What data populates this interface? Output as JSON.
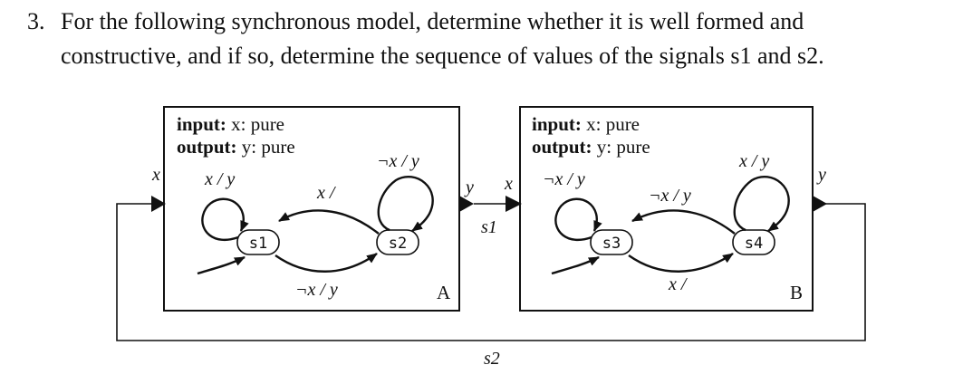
{
  "problem": {
    "number": "3.",
    "line1": "For the following synchronous model, determine whether it is well formed and",
    "line2": "constructive, and if so, determine the sequence of values of the signals s1 and s2."
  },
  "machine_a": {
    "name": "A",
    "input_kw": "input:",
    "input_rest": "x: pure",
    "output_kw": "output:",
    "output_rest": "y: pure",
    "states": [
      "s1",
      "s2"
    ],
    "edges": {
      "s1_self": "x / y",
      "s2_self": "¬x / y",
      "s2_to_s1": "x /",
      "s1_to_s2": "¬x / y"
    }
  },
  "machine_b": {
    "name": "B",
    "input_kw": "input:",
    "input_rest": "x: pure",
    "output_kw": "output:",
    "output_rest": "y: pure",
    "states": [
      "s3",
      "s4"
    ],
    "edges": {
      "s3_self": "¬x / y",
      "s4_self": "x / y",
      "s4_to_s3": "¬x / y",
      "s3_to_s4": "x /"
    }
  },
  "ports": {
    "a_in": "x",
    "a_out": "y",
    "b_in": "x",
    "b_out": "y"
  },
  "signals": {
    "s1": "s1",
    "s2": "s2"
  }
}
